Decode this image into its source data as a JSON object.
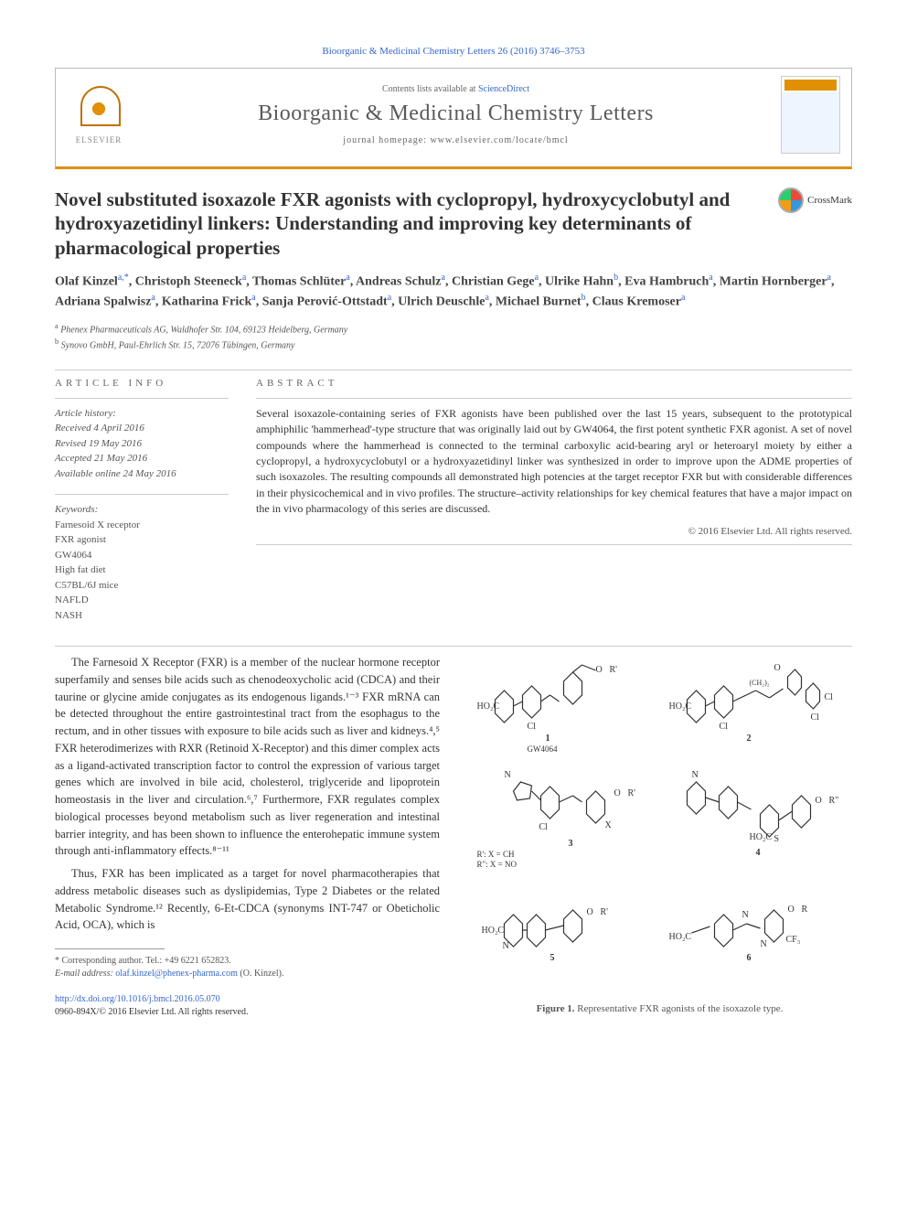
{
  "journal_ref": "Bioorganic & Medicinal Chemistry Letters 26 (2016) 3746–3753",
  "header": {
    "contents_prefix": "Contents lists available at ",
    "contents_link": "ScienceDirect",
    "journal_title": "Bioorganic & Medicinal Chemistry Letters",
    "homepage_prefix": "journal homepage: ",
    "homepage_url": "www.elsevier.com/locate/bmcl",
    "publisher": "ELSEVIER"
  },
  "crossmark_label": "CrossMark",
  "article": {
    "title": "Novel substituted isoxazole FXR agonists with cyclopropyl, hydroxycyclobutyl and hydroxyazetidinyl linkers: Understanding and improving key determinants of pharmacological properties",
    "authors_html": "Olaf Kinzel<sup>a,*</sup>, Christoph Steeneck<sup>a</sup>, Thomas Schlüter<sup>a</sup>, Andreas Schulz<sup>a</sup>, Christian Gege<sup>a</sup>, Ulrike Hahn<sup>b</sup>, Eva Hambruch<sup>a</sup>, Martin Hornberger<sup>a</sup>, Adriana Spalwisz<sup>a</sup>, Katharina Frick<sup>a</sup>, Sanja Perović-Ottstadt<sup>a</sup>, Ulrich Deuschle<sup>a</sup>, Michael Burnet<sup>b</sup>, Claus Kremoser<sup>a</sup>",
    "affiliations": [
      {
        "marker": "a",
        "text": "Phenex Pharmaceuticals AG, Waldhofer Str. 104, 69123 Heidelberg, Germany"
      },
      {
        "marker": "b",
        "text": "Synovo GmbH, Paul-Ehrlich Str. 15, 72076 Tübingen, Germany"
      }
    ]
  },
  "info": {
    "header": "ARTICLE INFO",
    "history_label": "Article history:",
    "history": [
      "Received 4 April 2016",
      "Revised 19 May 2016",
      "Accepted 21 May 2016",
      "Available online 24 May 2016"
    ],
    "keywords_label": "Keywords:",
    "keywords": [
      "Farnesoid X receptor",
      "FXR agonist",
      "GW4064",
      "High fat diet",
      "C57BL/6J mice",
      "NAFLD",
      "NASH"
    ]
  },
  "abstract": {
    "header": "ABSTRACT",
    "text": "Several isoxazole-containing series of FXR agonists have been published over the last 15 years, subsequent to the prototypical amphiphilic 'hammerhead'-type structure that was originally laid out by GW4064, the first potent synthetic FXR agonist. A set of novel compounds where the hammerhead is connected to the terminal carboxylic acid-bearing aryl or heteroaryl moiety by either a cyclopropyl, a hydroxycyclobutyl or a hydroxyazetidinyl linker was synthesized in order to improve upon the ADME properties of such isoxazoles. The resulting compounds all demonstrated high potencies at the target receptor FXR but with considerable differences in their physicochemical and in vivo profiles. The structure–activity relationships for key chemical features that have a major impact on the in vivo pharmacology of this series are discussed.",
    "copyright": "© 2016 Elsevier Ltd. All rights reserved."
  },
  "body": {
    "para1": "The Farnesoid X Receptor (FXR) is a member of the nuclear hormone receptor superfamily and senses bile acids such as chenodeoxycholic acid (CDCA) and their taurine or glycine amide conjugates as its endogenous ligands.¹⁻³ FXR mRNA can be detected throughout the entire gastrointestinal tract from the esophagus to the rectum, and in other tissues with exposure to bile acids such as liver and kidneys.⁴,⁵ FXR heterodimerizes with RXR (Retinoid X-Receptor) and this dimer complex acts as a ligand-activated transcription factor to control the expression of various target genes which are involved in bile acid, cholesterol, triglyceride and lipoprotein homeostasis in the liver and circulation.⁶,⁷ Furthermore, FXR regulates complex biological processes beyond metabolism such as liver regeneration and intestinal barrier integrity, and has been shown to influence the enterohepatic immune system through anti-inflammatory effects.⁸⁻¹¹",
    "para2": "Thus, FXR has been implicated as a target for novel pharmacotherapies that address metabolic diseases such as dyslipidemias, Type 2 Diabetes or the related Metabolic Syndrome.¹² Recently, 6-Et-CDCA (synonyms INT-747 or Obeticholic Acid, OCA), which is"
  },
  "footnote": {
    "corr": "* Corresponding author. Tel.: +49 6221 652823.",
    "email_label": "E-mail address: ",
    "email": "olaf.kinzel@phenex-pharma.com",
    "email_suffix": " (O. Kinzel)."
  },
  "doi": {
    "url": "http://dx.doi.org/10.1016/j.bmcl.2016.05.070",
    "issn_line": "0960-894X/© 2016 Elsevier Ltd. All rights reserved."
  },
  "figure1": {
    "caption_label": "Figure 1.",
    "caption_text": " Representative FXR agonists of the isoxazole type.",
    "compounds": [
      "1",
      "2",
      "3",
      "4",
      "5",
      "6"
    ],
    "gw_label": "GW4064",
    "r_labels": {
      "r_ch": "R': X = CH",
      "r_no": "R\": X = NO"
    },
    "structure_labels": [
      "HO₂C",
      "O",
      "R'",
      "Cl",
      "N",
      "CF₃",
      "(CH₂)₂",
      "S"
    ]
  },
  "colors": {
    "link": "#3366cc",
    "accent": "#e09000",
    "text": "#333333",
    "muted": "#666666"
  }
}
